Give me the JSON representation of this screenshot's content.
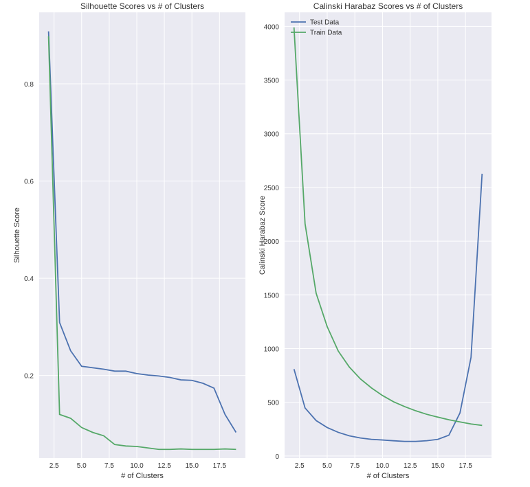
{
  "chart_data": [
    {
      "type": "line",
      "title": "Silhouette Scores vs # of Clusters",
      "xlabel": "# of Clusters",
      "ylabel": "Silhouette Score",
      "xlim": [
        1.15,
        19.85
      ],
      "ylim": [
        0.03,
        0.947
      ],
      "xticks": [
        "2.5",
        "5.0",
        "7.5",
        "10.0",
        "12.5",
        "15.0",
        "17.5"
      ],
      "xtick_values": [
        2.5,
        5,
        7.5,
        10,
        12.5,
        15,
        17.5
      ],
      "yticks": [
        "0.2",
        "0.4",
        "0.6",
        "0.8"
      ],
      "ytick_values": [
        0.2,
        0.4,
        0.6,
        0.8
      ],
      "grid": true,
      "x": [
        2,
        3,
        4,
        5,
        6,
        7,
        8,
        9,
        10,
        11,
        12,
        13,
        14,
        15,
        16,
        17,
        18,
        19
      ],
      "series": [
        {
          "color": "#4c72b0",
          "values": [
            0.908,
            0.309,
            0.251,
            0.219,
            0.216,
            0.213,
            0.209,
            0.209,
            0.204,
            0.201,
            0.199,
            0.196,
            0.191,
            0.19,
            0.184,
            0.174,
            0.12,
            0.083
          ]
        },
        {
          "color": "#55a868",
          "values": [
            0.898,
            0.12,
            0.112,
            0.093,
            0.083,
            0.076,
            0.058,
            0.055,
            0.054,
            0.051,
            0.048,
            0.048,
            0.049,
            0.048,
            0.048,
            0.048,
            0.049,
            0.048
          ]
        }
      ]
    },
    {
      "type": "line",
      "title": "Calinski Harabaz Scores vs # of Clusters",
      "xlabel": "# of Clusters",
      "ylabel": "Calinski Harabaz Score",
      "xlim": [
        1.15,
        19.85
      ],
      "ylim": [
        -20,
        4130
      ],
      "xticks": [
        "2.5",
        "5.0",
        "7.5",
        "10.0",
        "12.5",
        "15.0",
        "17.5"
      ],
      "xtick_values": [
        2.5,
        5,
        7.5,
        10,
        12.5,
        15,
        17.5
      ],
      "yticks": [
        "0",
        "500",
        "1000",
        "1500",
        "2000",
        "2500",
        "3000",
        "3500",
        "4000"
      ],
      "ytick_values": [
        0,
        500,
        1000,
        1500,
        2000,
        2500,
        3000,
        3500,
        4000
      ],
      "grid": true,
      "legend": "top-left",
      "x": [
        2,
        3,
        4,
        5,
        6,
        7,
        8,
        9,
        10,
        11,
        12,
        13,
        14,
        15,
        16,
        17,
        18,
        19
      ],
      "series": [
        {
          "name": "Test Data",
          "color": "#4c72b0",
          "values": [
            809,
            447,
            330,
            265,
            220,
            188,
            168,
            155,
            149,
            142,
            136,
            136,
            142,
            155,
            194,
            401,
            919,
            2628
          ]
        },
        {
          "name": "Train Data",
          "color": "#55a868",
          "values": [
            3990,
            2162,
            1515,
            1204,
            977,
            828,
            718,
            634,
            563,
            505,
            460,
            421,
            388,
            362,
            337,
            317,
            298,
            285
          ]
        }
      ]
    }
  ]
}
